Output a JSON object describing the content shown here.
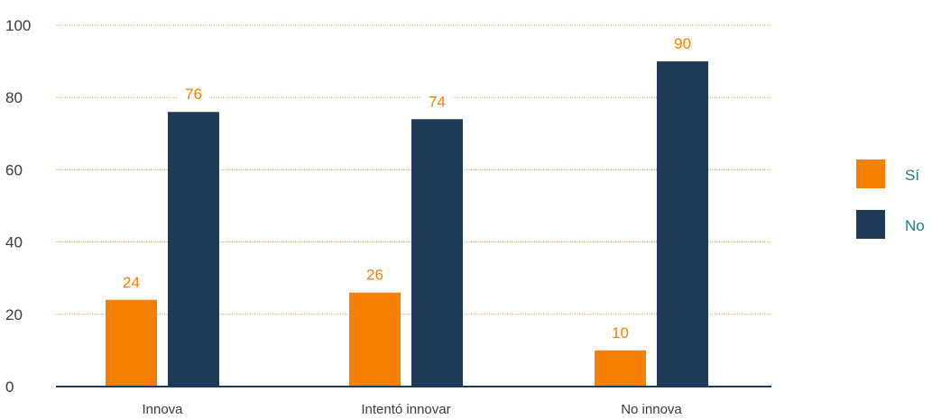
{
  "chart_data": {
    "type": "bar",
    "categories": [
      "Innova",
      "Intentó innovar",
      "No innova"
    ],
    "series": [
      {
        "name": "Sí",
        "values": [
          24,
          26,
          10
        ],
        "color": "#f77f00"
      },
      {
        "name": "No",
        "values": [
          76,
          74,
          90
        ],
        "color": "#1d3a57"
      }
    ],
    "ylim": [
      0,
      100
    ],
    "yticks": [
      0,
      20,
      40,
      60,
      80,
      100
    ],
    "grid": true,
    "legend_position": "right",
    "value_label_colors": {
      "Sí": "#f77f00",
      "No": "#f77f00"
    },
    "legend_text_color": "#1b7c8a",
    "axis_color": "#1d3a57",
    "grid_color": "#e08a2a"
  }
}
